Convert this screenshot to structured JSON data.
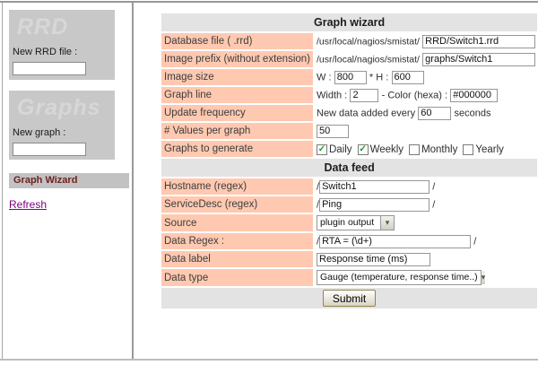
{
  "sidebar": {
    "rrd_panel": {
      "title": "RRD",
      "label": "New RRD file :",
      "value": ""
    },
    "graphs_panel": {
      "title": "Graphs",
      "label": "New graph :",
      "value": ""
    },
    "wizard_item": "Graph Wizard",
    "refresh_link": "Refresh"
  },
  "wizard": {
    "title": "Graph wizard",
    "rows": [
      {
        "label": "Database file ( .rrd)",
        "prefix": "/usr/local/nagios/smistat/",
        "value": "RRD/Switch1.rrd"
      },
      {
        "label": "Image prefix (without extension)",
        "prefix": "/usr/local/nagios/smistat/",
        "value": "graphs/Switch1"
      },
      {
        "label": "Image size",
        "w_label": "W :",
        "w_value": "800",
        "h_label": "* H :",
        "h_value": "600"
      },
      {
        "label": "Graph line",
        "width_label": "Width :",
        "width_value": "2",
        "color_label": "- Color (hexa) :",
        "color_value": "#000000"
      },
      {
        "label": "Update frequency",
        "pre": "New data added every",
        "value": "60",
        "post": "seconds"
      },
      {
        "label": "# Values per graph",
        "value": "50"
      },
      {
        "label": "Graphs to generate",
        "checkboxes": [
          {
            "label": "Daily",
            "mark": "✓"
          },
          {
            "label": "Weekly",
            "mark": "✓"
          },
          {
            "label": "Monthly",
            "mark": ""
          },
          {
            "label": "Yearly",
            "mark": ""
          }
        ]
      }
    ],
    "submit_label": "Submit"
  },
  "datafeed": {
    "title": "Data feed",
    "rows": [
      {
        "label": "Hostname (regex)",
        "pre": "/",
        "value": "Switch1",
        "post": "/"
      },
      {
        "label": "ServiceDesc (regex)",
        "pre": "/",
        "value": "Ping",
        "post": "/"
      },
      {
        "label": "Source",
        "value": "plugin output"
      },
      {
        "label": "Data Regex :",
        "pre": "/",
        "value": "RTA = (\\d+)",
        "post": "/"
      },
      {
        "label": "Data label",
        "value": "Response time (ms)"
      },
      {
        "label": "Data type",
        "value": "Gauge (temperature, response time..)"
      }
    ]
  },
  "colors": {
    "label_cell": "#ffc9b1",
    "section_header": "#e3e3e3",
    "sidebar_panel": "#c8c8c8",
    "wizard_item_text": "#6e1f1f",
    "refresh_link": "#800080",
    "check_mark": "#1f9b1f"
  }
}
